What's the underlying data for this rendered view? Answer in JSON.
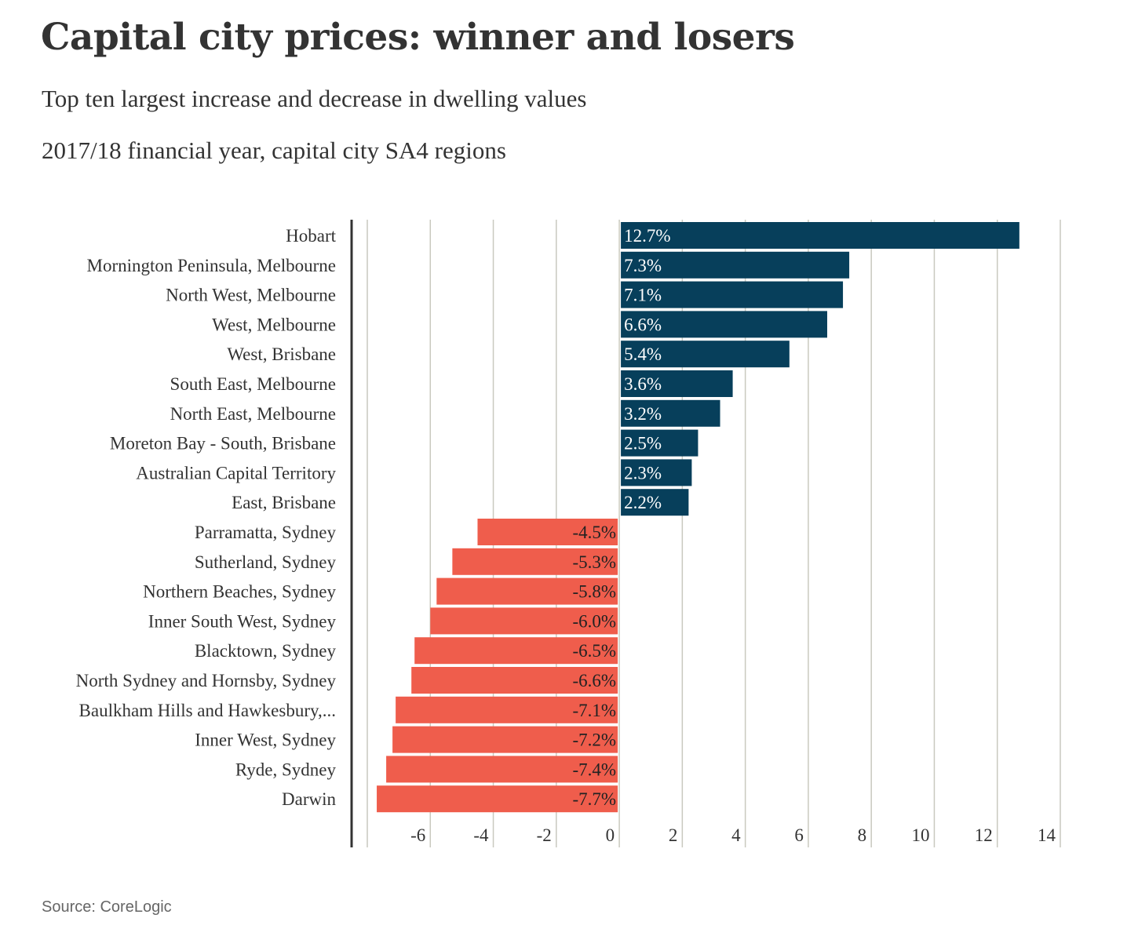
{
  "header": {
    "title": "Capital city prices: winner and losers",
    "subtitle": "Top ten largest increase and decrease in dwelling values",
    "subtitle2": "2017/18 financial year, capital city SA4 regions"
  },
  "footer": {
    "source": "Source: CoreLogic"
  },
  "colors": {
    "positive": "#073f5b",
    "negative": "#ef5d4c",
    "grid": "#c9c9bf",
    "axis": "#333333",
    "text": "#333333"
  },
  "chart_data": {
    "type": "bar",
    "orientation": "horizontal",
    "title": "Capital city prices: winner and losers",
    "categories": [
      "Hobart",
      "Mornington Peninsula, Melbourne",
      "North West, Melbourne",
      "West, Melbourne",
      "West, Brisbane",
      "South East, Melbourne",
      "North East, Melbourne",
      "Moreton Bay - South, Brisbane",
      "Australian Capital Territory",
      "East, Brisbane",
      "Parramatta, Sydney",
      "Sutherland, Sydney",
      "Northern Beaches, Sydney",
      "Inner South West, Sydney",
      "Blacktown, Sydney",
      "North Sydney and Hornsby, Sydney",
      "Baulkham Hills and Hawkesbury,...",
      "Inner West, Sydney",
      "Ryde, Sydney",
      "Darwin"
    ],
    "values": [
      12.7,
      7.3,
      7.1,
      6.6,
      5.4,
      3.6,
      3.2,
      2.5,
      2.3,
      2.2,
      -4.5,
      -5.3,
      -5.8,
      -6.0,
      -6.5,
      -6.6,
      -7.1,
      -7.2,
      -7.4,
      -7.7
    ],
    "data_labels": [
      "12.7%",
      "7.3%",
      "7.1%",
      "6.6%",
      "5.4%",
      "3.6%",
      "3.2%",
      "2.5%",
      "2.3%",
      "2.2%",
      "-4.5%",
      "-5.3%",
      "-5.8%",
      "-6.0%",
      "-6.5%",
      "-6.6%",
      "-7.1%",
      "-7.2%",
      "-7.4%",
      "-7.7%"
    ],
    "xlim": [
      -8,
      14
    ],
    "x_ticks": [
      -6,
      -4,
      -2,
      0,
      2,
      4,
      6,
      8,
      10,
      12,
      14
    ],
    "grid": true,
    "xlabel": "",
    "ylabel": ""
  }
}
